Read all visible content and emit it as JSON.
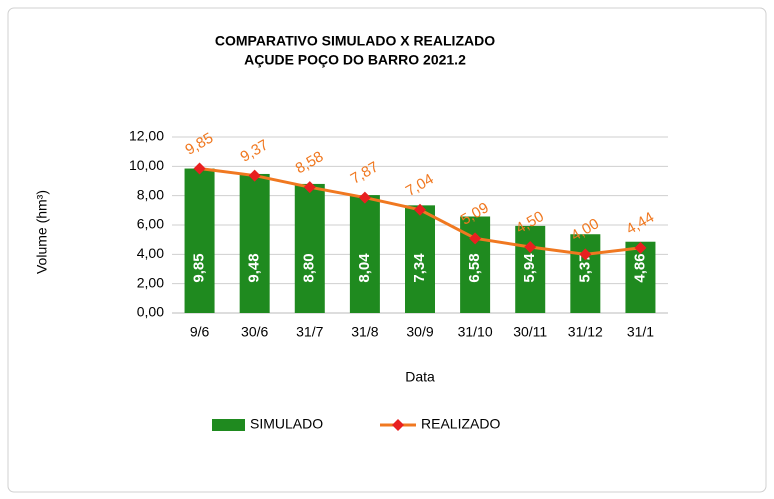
{
  "chart_data": {
    "type": "bar",
    "title": "COMPARATIVO SIMULADO X REALIZADO",
    "subtitle": "AÇUDE POÇO DO BARRO 2021.2",
    "y_label": "Volume (hm³)",
    "x_label": "Data",
    "categories": [
      "9/6",
      "30/6",
      "31/7",
      "31/8",
      "30/9",
      "31/10",
      "30/11",
      "31/12",
      "31/1"
    ],
    "series": [
      {
        "name": "SIMULADO",
        "type": "bar",
        "color": "#1f8a1f",
        "values": [
          9.85,
          9.48,
          8.8,
          8.04,
          7.34,
          6.58,
          5.94,
          5.37,
          4.86
        ],
        "value_labels": [
          "9,85",
          "9,48",
          "8,80",
          "8,04",
          "7,34",
          "6,58",
          "5,94",
          "5,37",
          "4,86"
        ]
      },
      {
        "name": "REALIZADO",
        "type": "line",
        "color": "#f07820",
        "marker_color": "#e82020",
        "values": [
          9.85,
          9.37,
          8.58,
          7.87,
          7.04,
          5.09,
          4.5,
          4.0,
          4.44
        ],
        "value_labels": [
          "9,85",
          "9,37",
          "8,58",
          "7,87",
          "7,04",
          "5,09",
          "4,50",
          "4,00",
          "4,44"
        ]
      }
    ],
    "ylim": [
      0,
      12
    ],
    "yticks": [
      {
        "value": 0,
        "label": "0,00"
      },
      {
        "value": 2,
        "label": "2,00"
      },
      {
        "value": 4,
        "label": "4,00"
      },
      {
        "value": 6,
        "label": "6,00"
      },
      {
        "value": 8,
        "label": "8,00"
      },
      {
        "value": 10,
        "label": "10,00"
      },
      {
        "value": 12,
        "label": "12,00"
      }
    ],
    "grid": true,
    "legend": "bottom"
  }
}
